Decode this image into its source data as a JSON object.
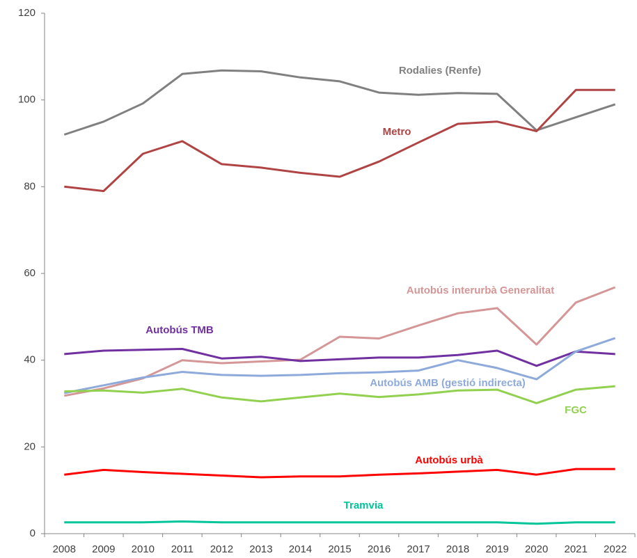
{
  "chart_data": {
    "type": "line",
    "categories": [
      "2008",
      "2009",
      "2010",
      "2011",
      "2012",
      "2013",
      "2014",
      "2015",
      "2016",
      "2017",
      "2018",
      "2019",
      "2020",
      "2021",
      "2022"
    ],
    "ylim": [
      0,
      120
    ],
    "yticks": [
      0,
      20,
      40,
      60,
      80,
      100,
      120
    ],
    "series": [
      {
        "name": "Rodalies (Renfe)",
        "color": "#808080",
        "values": [
          92,
          95,
          99.2,
          106,
          106.8,
          106.6,
          105.2,
          104.3,
          101.7,
          101.2,
          101.6,
          101.4,
          93,
          96,
          99
        ]
      },
      {
        "name": "Metro",
        "color": "#b04444",
        "values": [
          80,
          79,
          87.6,
          90.5,
          85.2,
          84.4,
          83.2,
          82.3,
          85.8,
          90.2,
          94.5,
          95,
          92.8,
          102.3,
          102.3
        ]
      },
      {
        "name": "Autobús interurbà Generalitat",
        "color": "#d49696",
        "values": [
          31.8,
          33.5,
          35.8,
          40,
          39.3,
          39.7,
          40.1,
          45.4,
          45,
          48,
          50.8,
          52,
          43.6,
          53.3,
          56.8
        ]
      },
      {
        "name": "Autobús TMB",
        "color": "#7030a0",
        "values": [
          41.4,
          42.2,
          42.4,
          42.6,
          40.4,
          40.8,
          39.8,
          40.2,
          40.6,
          40.6,
          41.2,
          42.2,
          38.7,
          42,
          41.4
        ]
      },
      {
        "name": "Autobús AMB (gestió indirecta)",
        "color": "#8eaadb",
        "values": [
          32.4,
          34.2,
          36,
          37.3,
          36.6,
          36.4,
          36.6,
          37,
          37.2,
          37.6,
          40,
          38.2,
          35.6,
          42,
          45.1
        ]
      },
      {
        "name": "FGC",
        "color": "#92d050",
        "values": [
          32.8,
          33,
          32.5,
          33.4,
          31.4,
          30.5,
          31.4,
          32.3,
          31.5,
          32.1,
          33,
          33.2,
          30.1,
          33.2,
          34
        ]
      },
      {
        "name": "Autobús urbà",
        "color": "#ff0000",
        "values": [
          13.6,
          14.7,
          14.2,
          13.8,
          13.4,
          13,
          13.2,
          13.2,
          13.6,
          13.9,
          14.3,
          14.7,
          13.6,
          14.9,
          14.9
        ]
      },
      {
        "name": "Tramvia",
        "color": "#00c49a",
        "values": [
          2.6,
          2.6,
          2.6,
          2.8,
          2.6,
          2.6,
          2.6,
          2.6,
          2.6,
          2.6,
          2.6,
          2.6,
          2.3,
          2.6,
          2.6
        ]
      }
    ]
  }
}
